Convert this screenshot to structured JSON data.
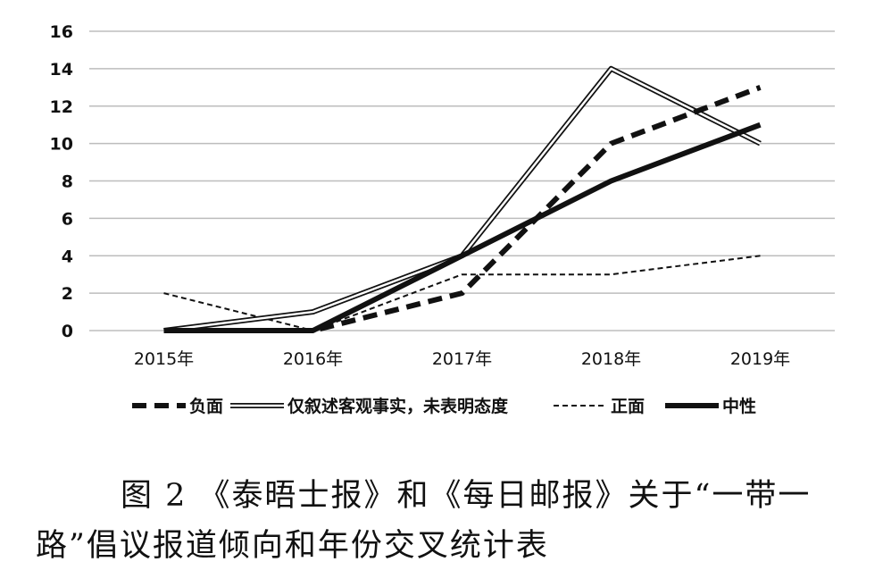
{
  "chart_data": {
    "type": "line",
    "categories": [
      "2015年",
      "2016年",
      "2017年",
      "2018年",
      "2019年"
    ],
    "ylim": [
      0,
      16
    ],
    "yticks": [
      0,
      2,
      4,
      6,
      8,
      10,
      12,
      14,
      16
    ],
    "grid": true,
    "legend_position": "bottom",
    "series": [
      {
        "name": "负面",
        "values": [
          0,
          0,
          2,
          10,
          13
        ],
        "style": "dashed-thick",
        "color": "#111111"
      },
      {
        "name": "仅叙述客观事实，未表明态度",
        "values": [
          0,
          1,
          4,
          14,
          10
        ],
        "style": "double",
        "color": "#111111"
      },
      {
        "name": "正面",
        "values": [
          2,
          0,
          3,
          3,
          4
        ],
        "style": "dashed-thin",
        "color": "#111111"
      },
      {
        "name": "中性",
        "values": [
          0,
          0,
          4,
          8,
          11
        ],
        "style": "solid-thick",
        "color": "#111111"
      }
    ]
  },
  "caption": {
    "line1": "图 2 《泰晤士报》和《每日邮报》关于“一带一",
    "line2": "路”倡议报道倾向和年份交叉统计表"
  }
}
